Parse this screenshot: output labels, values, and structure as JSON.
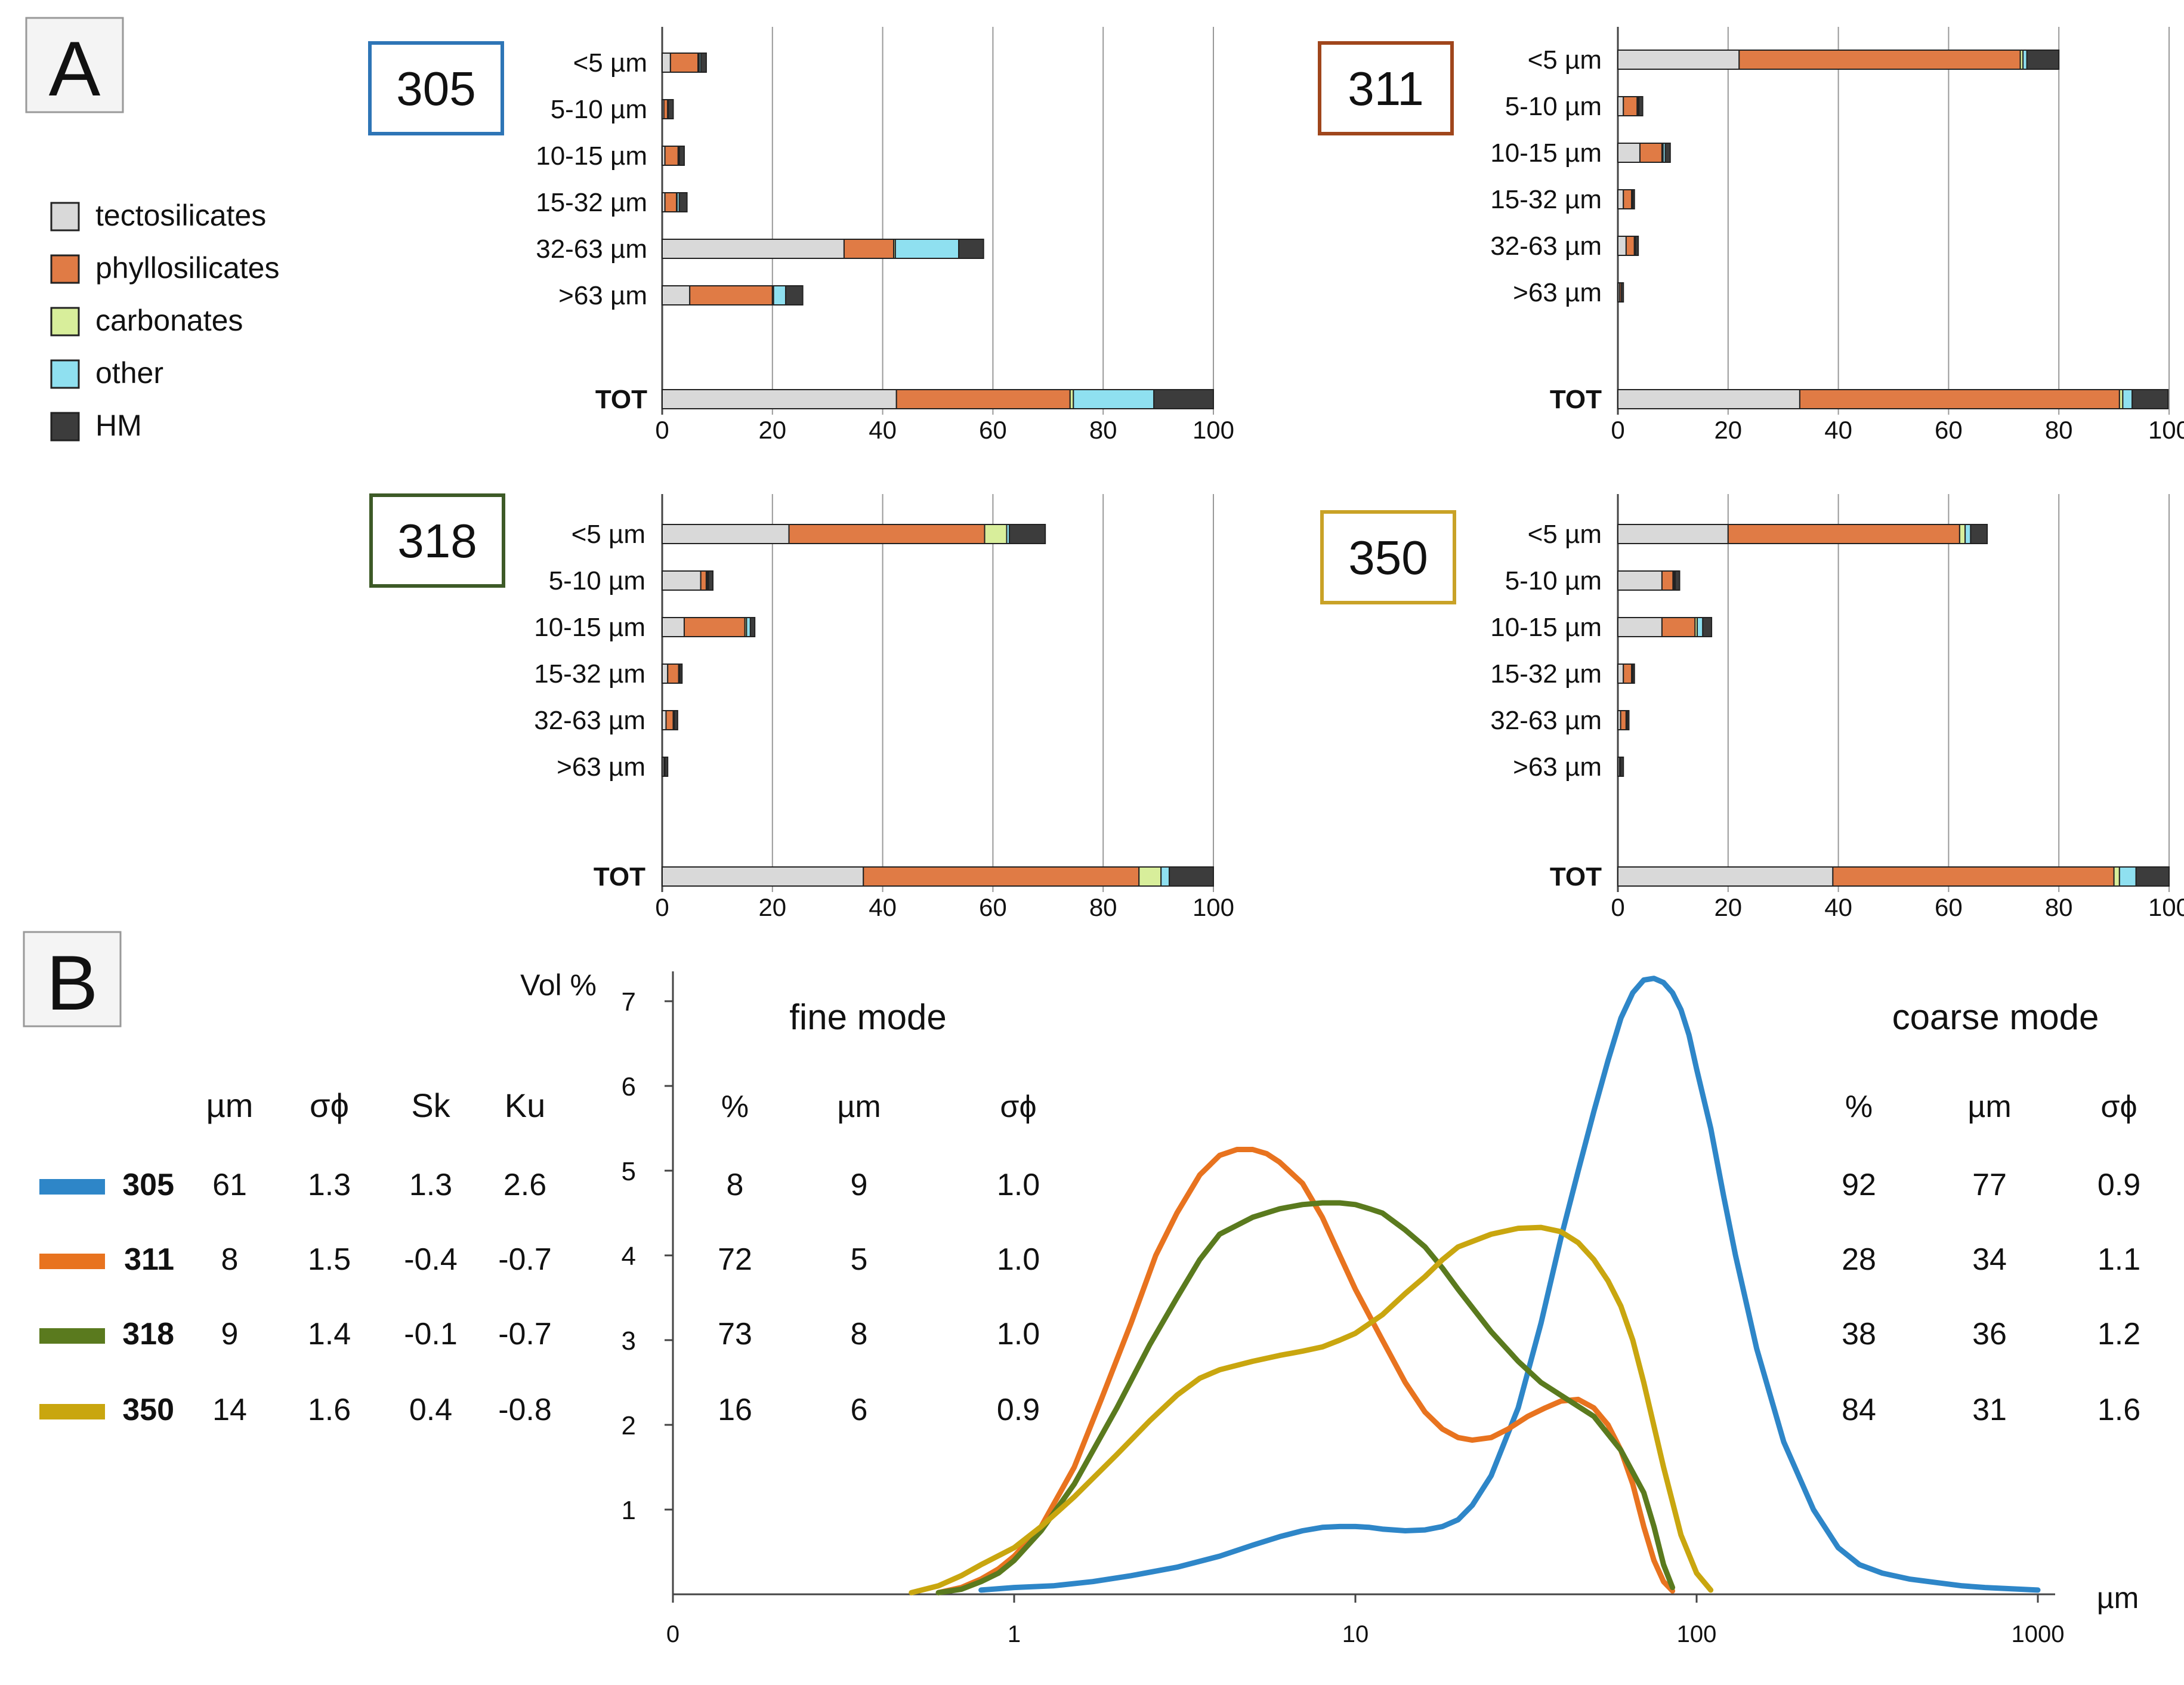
{
  "panel_a_label": "A",
  "panel_b_label": "B",
  "legend_a": [
    {
      "label": "tectosilicates",
      "color": "#d9d9d9"
    },
    {
      "label": "phyllosilicates",
      "color": "#e07b45"
    },
    {
      "label": "carbonates",
      "color": "#d8ee9b"
    },
    {
      "label": "other",
      "color": "#8fe0f0"
    },
    {
      "label": "HM",
      "color": "#3c3c3c"
    }
  ],
  "bar_categories": [
    "<5 µm",
    "5-10 µm",
    "10-15 µm",
    "15-32 µm",
    "32-63 µm",
    ">63 µm"
  ],
  "total_label": "TOT",
  "bar_ticks": [
    "0",
    "20",
    "40",
    "60",
    "80",
    "100"
  ],
  "size_unit": "µm",
  "y_axis_label": "Vol %",
  "x_ticks": [
    "0",
    "1",
    "10",
    "100",
    "1000"
  ],
  "y_ticks": [
    "1",
    "2",
    "3",
    "4",
    "5",
    "6",
    "7"
  ],
  "fine_mode_title": "fine mode",
  "coarse_mode_title": "coarse mode",
  "stats_headers": [
    "µm",
    "σϕ",
    "Sk",
    "Ku"
  ],
  "mode_headers": [
    "%",
    "µm",
    "σϕ"
  ],
  "chart_data": [
    {
      "type": "bar",
      "stacked": true,
      "orientation": "horizontal",
      "title": "305",
      "frame_color": "#2e75b6",
      "categories": [
        "<5 µm",
        "5-10 µm",
        "10-15 µm",
        "15-32 µm",
        "32-63 µm",
        ">63 µm",
        "TOT"
      ],
      "series": [
        {
          "name": "tectosilicates",
          "values": [
            1.5,
            0.3,
            0.5,
            0.5,
            33,
            5,
            42.5
          ]
        },
        {
          "name": "phyllosilicates",
          "values": [
            5,
            0.7,
            2.4,
            2.1,
            9,
            15,
            31.5
          ]
        },
        {
          "name": "carbonates",
          "values": [
            0.2,
            0,
            0.1,
            0.1,
            0.3,
            0.2,
            0.6
          ]
        },
        {
          "name": "other",
          "values": [
            0.3,
            0.1,
            0.1,
            0.4,
            11.5,
            2.2,
            14.6
          ]
        },
        {
          "name": "HM",
          "values": [
            1,
            0.9,
            0.9,
            1.4,
            4.5,
            3.1,
            10.8
          ]
        }
      ],
      "xlim": [
        0,
        100
      ]
    },
    {
      "type": "bar",
      "stacked": true,
      "orientation": "horizontal",
      "title": "311",
      "frame_color": "#a0461c",
      "categories": [
        "<5 µm",
        "5-10 µm",
        "10-15 µm",
        "15-32 µm",
        "32-63 µm",
        ">63 µm",
        "TOT"
      ],
      "series": [
        {
          "name": "tectosilicates",
          "values": [
            22,
            1,
            4,
            1,
            1.5,
            0.3,
            33
          ]
        },
        {
          "name": "phyllosilicates",
          "values": [
            51,
            2.5,
            4,
            1.5,
            1.5,
            0.3,
            58
          ]
        },
        {
          "name": "carbonates",
          "values": [
            0.5,
            0.1,
            0.2,
            0.1,
            0.1,
            0,
            0.6
          ]
        },
        {
          "name": "other",
          "values": [
            0.7,
            0.2,
            0.4,
            0.1,
            0.1,
            0,
            1.7
          ]
        },
        {
          "name": "HM",
          "values": [
            5.8,
            0.7,
            0.9,
            0.3,
            0.5,
            0.4,
            6.5
          ]
        }
      ],
      "xlim": [
        0,
        100
      ]
    },
    {
      "type": "bar",
      "stacked": true,
      "orientation": "horizontal",
      "title": "318",
      "frame_color": "#3d5a27",
      "categories": [
        "<5 µm",
        "5-10 µm",
        "10-15 µm",
        "15-32 µm",
        "32-63 µm",
        ">63 µm",
        "TOT"
      ],
      "series": [
        {
          "name": "tectosilicates",
          "values": [
            23,
            7,
            4,
            1,
            0.7,
            0.3,
            36.5
          ]
        },
        {
          "name": "phyllosilicates",
          "values": [
            35.5,
            1,
            11,
            2,
            1.3,
            0.2,
            50
          ]
        },
        {
          "name": "carbonates",
          "values": [
            4,
            0.2,
            0.3,
            0.1,
            0.1,
            0,
            4
          ]
        },
        {
          "name": "other",
          "values": [
            0.5,
            0.2,
            0.7,
            0.1,
            0.1,
            0,
            1.5
          ]
        },
        {
          "name": "HM",
          "values": [
            6.5,
            0.8,
            0.8,
            0.4,
            0.6,
            0.5,
            8
          ]
        }
      ],
      "xlim": [
        0,
        100
      ]
    },
    {
      "type": "bar",
      "stacked": true,
      "orientation": "horizontal",
      "title": "350",
      "frame_color": "#c9a227",
      "categories": [
        "<5 µm",
        "5-10 µm",
        "10-15 µm",
        "15-32 µm",
        "32-63 µm",
        ">63 µm",
        "TOT"
      ],
      "series": [
        {
          "name": "tectosilicates",
          "values": [
            20,
            8,
            8,
            1,
            0.5,
            0.3,
            39
          ]
        },
        {
          "name": "phyllosilicates",
          "values": [
            42,
            2,
            6,
            1.5,
            1,
            0.2,
            51
          ]
        },
        {
          "name": "carbonates",
          "values": [
            1,
            0.2,
            0.4,
            0.1,
            0.1,
            0,
            1
          ]
        },
        {
          "name": "other",
          "values": [
            1,
            0.2,
            1,
            0.1,
            0.1,
            0,
            3
          ]
        },
        {
          "name": "HM",
          "values": [
            3,
            0.8,
            1.6,
            0.3,
            0.3,
            0.5,
            6
          ]
        }
      ],
      "xlim": [
        0,
        100
      ]
    },
    {
      "type": "line",
      "xscale": "log",
      "xlabel": "µm",
      "ylabel": "Vol %",
      "xlim": [
        0.1,
        1000
      ],
      "ylim": [
        0,
        7.5
      ],
      "series": [
        {
          "name": "305",
          "color": "#2e86c8",
          "mean_um": "61",
          "sorting": "1.3",
          "skewness": "1.3",
          "kurtosis": "2.6",
          "fine_mode": {
            "pct": "8",
            "um": "9",
            "sorting": "1.0"
          },
          "coarse_mode": {
            "pct": "92",
            "um": "77",
            "sorting": "0.9"
          },
          "points": [
            [
              0.8,
              0.05
            ],
            [
              1.0,
              0.08
            ],
            [
              1.3,
              0.1
            ],
            [
              1.7,
              0.15
            ],
            [
              2.2,
              0.22
            ],
            [
              3,
              0.32
            ],
            [
              4,
              0.45
            ],
            [
              5,
              0.58
            ],
            [
              6,
              0.68
            ],
            [
              7,
              0.75
            ],
            [
              8,
              0.79
            ],
            [
              9,
              0.8
            ],
            [
              10,
              0.8
            ],
            [
              11,
              0.79
            ],
            [
              12,
              0.77
            ],
            [
              14,
              0.75
            ],
            [
              16,
              0.76
            ],
            [
              18,
              0.8
            ],
            [
              20,
              0.88
            ],
            [
              22,
              1.05
            ],
            [
              25,
              1.4
            ],
            [
              30,
              2.2
            ],
            [
              35,
              3.2
            ],
            [
              40,
              4.2
            ],
            [
              45,
              5.0
            ],
            [
              50,
              5.7
            ],
            [
              55,
              6.3
            ],
            [
              60,
              6.8
            ],
            [
              65,
              7.1
            ],
            [
              70,
              7.25
            ],
            [
              75,
              7.27
            ],
            [
              80,
              7.22
            ],
            [
              85,
              7.1
            ],
            [
              90,
              6.9
            ],
            [
              95,
              6.6
            ],
            [
              100,
              6.2
            ],
            [
              110,
              5.5
            ],
            [
              120,
              4.7
            ],
            [
              130,
              4.0
            ],
            [
              150,
              2.9
            ],
            [
              180,
              1.8
            ],
            [
              220,
              1.0
            ],
            [
              260,
              0.55
            ],
            [
              300,
              0.35
            ],
            [
              350,
              0.25
            ],
            [
              420,
              0.18
            ],
            [
              500,
              0.14
            ],
            [
              600,
              0.1
            ],
            [
              700,
              0.08
            ],
            [
              1000,
              0.05
            ]
          ]
        },
        {
          "name": "311",
          "color": "#e8731f",
          "mean_um": "8",
          "sorting": "1.5",
          "skewness": "-0.4",
          "kurtosis": "-0.7",
          "fine_mode": {
            "pct": "72",
            "um": "5",
            "sorting": "1.0"
          },
          "coarse_mode": {
            "pct": "28",
            "um": "34",
            "sorting": "1.1"
          },
          "points": [
            [
              0.6,
              0.02
            ],
            [
              0.7,
              0.08
            ],
            [
              0.8,
              0.18
            ],
            [
              0.9,
              0.3
            ],
            [
              1.0,
              0.45
            ],
            [
              1.2,
              0.8
            ],
            [
              1.5,
              1.5
            ],
            [
              1.8,
              2.3
            ],
            [
              2.2,
              3.2
            ],
            [
              2.6,
              4.0
            ],
            [
              3,
              4.5
            ],
            [
              3.5,
              4.95
            ],
            [
              4,
              5.18
            ],
            [
              4.5,
              5.25
            ],
            [
              5,
              5.25
            ],
            [
              5.5,
              5.2
            ],
            [
              6,
              5.1
            ],
            [
              7,
              4.85
            ],
            [
              8,
              4.45
            ],
            [
              9,
              4.0
            ],
            [
              10,
              3.6
            ],
            [
              12,
              3.0
            ],
            [
              14,
              2.5
            ],
            [
              16,
              2.15
            ],
            [
              18,
              1.95
            ],
            [
              20,
              1.85
            ],
            [
              22,
              1.82
            ],
            [
              25,
              1.85
            ],
            [
              28,
              1.95
            ],
            [
              32,
              2.1
            ],
            [
              36,
              2.2
            ],
            [
              40,
              2.28
            ],
            [
              45,
              2.3
            ],
            [
              50,
              2.2
            ],
            [
              55,
              2.0
            ],
            [
              60,
              1.7
            ],
            [
              65,
              1.3
            ],
            [
              70,
              0.8
            ],
            [
              75,
              0.4
            ],
            [
              80,
              0.15
            ],
            [
              85,
              0.04
            ]
          ]
        },
        {
          "name": "318",
          "color": "#5a7a1e",
          "mean_um": "9",
          "sorting": "1.4",
          "skewness": "-0.1",
          "kurtosis": "-0.7",
          "fine_mode": {
            "pct": "73",
            "um": "8",
            "sorting": "1.0"
          },
          "coarse_mode": {
            "pct": "38",
            "um": "36",
            "sorting": "1.2"
          },
          "points": [
            [
              0.6,
              0.02
            ],
            [
              0.7,
              0.06
            ],
            [
              0.8,
              0.15
            ],
            [
              0.9,
              0.25
            ],
            [
              1.0,
              0.4
            ],
            [
              1.2,
              0.75
            ],
            [
              1.5,
              1.3
            ],
            [
              2,
              2.2
            ],
            [
              2.5,
              2.95
            ],
            [
              3,
              3.5
            ],
            [
              3.5,
              3.95
            ],
            [
              4,
              4.25
            ],
            [
              5,
              4.45
            ],
            [
              6,
              4.55
            ],
            [
              7,
              4.6
            ],
            [
              8,
              4.62
            ],
            [
              9,
              4.62
            ],
            [
              10,
              4.6
            ],
            [
              11,
              4.55
            ],
            [
              12,
              4.5
            ],
            [
              14,
              4.3
            ],
            [
              16,
              4.1
            ],
            [
              18,
              3.85
            ],
            [
              20,
              3.6
            ],
            [
              25,
              3.1
            ],
            [
              30,
              2.75
            ],
            [
              35,
              2.5
            ],
            [
              40,
              2.35
            ],
            [
              50,
              2.1
            ],
            [
              60,
              1.7
            ],
            [
              70,
              1.2
            ],
            [
              75,
              0.8
            ],
            [
              80,
              0.35
            ],
            [
              85,
              0.08
            ]
          ]
        },
        {
          "name": "350",
          "color": "#c9a60f",
          "mean_um": "14",
          "sorting": "1.6",
          "skewness": "0.4",
          "kurtosis": "-0.8",
          "fine_mode": {
            "pct": "16",
            "um": "6",
            "sorting": "0.9"
          },
          "coarse_mode": {
            "pct": "84",
            "um": "31",
            "sorting": "1.6"
          },
          "points": [
            [
              0.5,
              0.02
            ],
            [
              0.6,
              0.1
            ],
            [
              0.7,
              0.22
            ],
            [
              0.8,
              0.35
            ],
            [
              1.0,
              0.55
            ],
            [
              1.2,
              0.8
            ],
            [
              1.5,
              1.15
            ],
            [
              2,
              1.65
            ],
            [
              2.5,
              2.05
            ],
            [
              3,
              2.35
            ],
            [
              3.5,
              2.55
            ],
            [
              4,
              2.65
            ],
            [
              5,
              2.75
            ],
            [
              6,
              2.82
            ],
            [
              7,
              2.87
            ],
            [
              8,
              2.92
            ],
            [
              9,
              3.0
            ],
            [
              10,
              3.08
            ],
            [
              12,
              3.3
            ],
            [
              14,
              3.55
            ],
            [
              16,
              3.75
            ],
            [
              18,
              3.95
            ],
            [
              20,
              4.1
            ],
            [
              25,
              4.25
            ],
            [
              30,
              4.32
            ],
            [
              35,
              4.33
            ],
            [
              40,
              4.28
            ],
            [
              45,
              4.15
            ],
            [
              50,
              3.95
            ],
            [
              55,
              3.7
            ],
            [
              60,
              3.4
            ],
            [
              65,
              3.0
            ],
            [
              70,
              2.5
            ],
            [
              80,
              1.5
            ],
            [
              90,
              0.7
            ],
            [
              100,
              0.25
            ],
            [
              110,
              0.05
            ]
          ]
        }
      ]
    }
  ]
}
